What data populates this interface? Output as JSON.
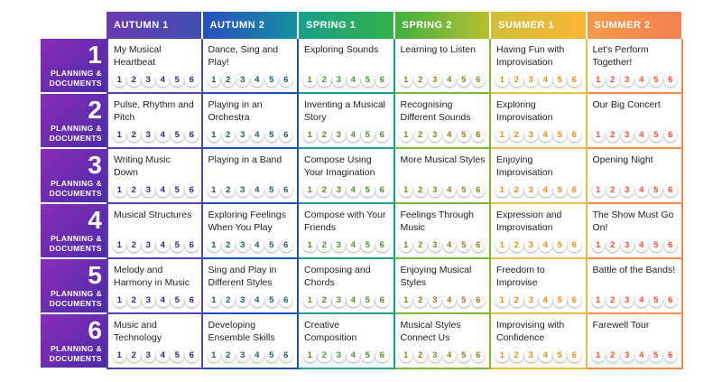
{
  "columns": [
    {
      "label": "AUTUMN 1",
      "color": "#5a3fae",
      "bg": "linear-gradient(90deg,#6a3aae,#3d4fb0)",
      "num": "#2c2c78"
    },
    {
      "label": "AUTUMN 2",
      "color": "#1d4fb8",
      "bg": "linear-gradient(90deg,#2a4fc0,#1590a0)",
      "num": "#1f5a6a"
    },
    {
      "label": "SPRING 1",
      "color": "#17a08a",
      "bg": "linear-gradient(90deg,#17a08a,#33b04a)",
      "num": "#4f8f2a"
    },
    {
      "label": "SPRING 2",
      "color": "#7cb832",
      "bg": "linear-gradient(90deg,#3fb040,#b8c030)",
      "num": "#8f7f1a"
    },
    {
      "label": "SUMMER 1",
      "color": "#e6c040",
      "bg": "linear-gradient(90deg,#cfc03a,#fbb535)",
      "num": "#f08a10"
    },
    {
      "label": "SUMMER 2",
      "color": "#f5894a",
      "bg": "linear-gradient(90deg,#f59a4a,#f57f50)",
      "num": "#f04a3a"
    }
  ],
  "row_label": "PLANNING & DOCUMENTS",
  "lesson_numbers": [
    "1",
    "2",
    "3",
    "4",
    "5",
    "6"
  ],
  "rows": [
    {
      "year": "1",
      "units": [
        "My Musical Heartbeat",
        "Dance, Sing and Play!",
        "Exploring Sounds",
        "Learning to Listen",
        "Having Fun with Improvisation",
        "Let's Perform Together!"
      ]
    },
    {
      "year": "2",
      "units": [
        "Pulse, Rhythm and Pitch",
        "Playing in an Orchestra",
        "Inventing a Musical Story",
        "Recognising Different Sounds",
        "Exploring Improvisation",
        "Our Big Concert"
      ]
    },
    {
      "year": "3",
      "units": [
        "Writing Music Down",
        "Playing in a Band",
        "Compose Using Your Imagination",
        "More Musical Styles",
        "Enjoying Improvisation",
        "Opening Night"
      ]
    },
    {
      "year": "4",
      "units": [
        "Musical Structures",
        "Exploring Feelings When You Play",
        "Compose with Your Friends",
        "Feelings Through Music",
        "Expression and Improvisation",
        "The Show Must Go On!"
      ]
    },
    {
      "year": "5",
      "units": [
        "Melody and Harmony in Music",
        "Sing and Play in Different Styles",
        "Composing and Chords",
        "Enjoying Musical Styles",
        "Freedom to Improvise",
        "Battle of the Bands!"
      ]
    },
    {
      "year": "6",
      "units": [
        "Music and Technology",
        "Developing Ensemble Skills",
        "Creative Composition",
        "Musical Styles Connect Us",
        "Improvising with Confidence",
        "Farewell Tour"
      ]
    }
  ]
}
